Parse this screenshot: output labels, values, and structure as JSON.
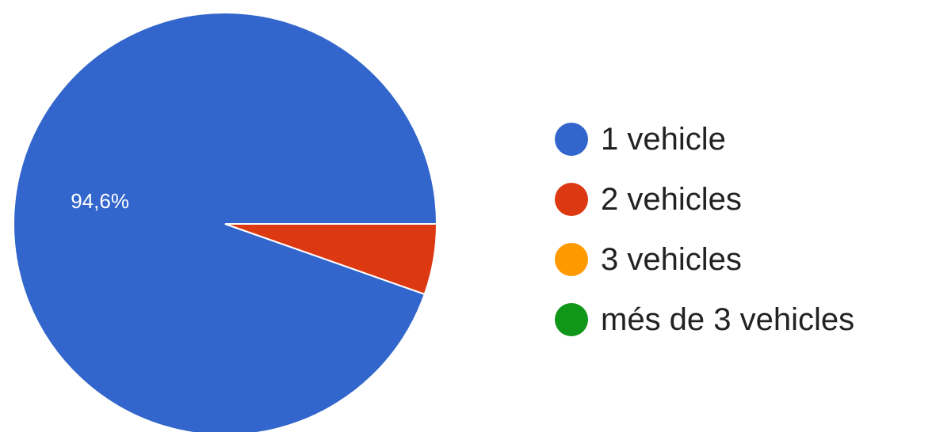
{
  "chart_data": {
    "type": "pie",
    "title": "",
    "slices": [
      {
        "label": "1 vehicle",
        "value": 94.6,
        "color": "#3366cc",
        "data_label": "94,6%"
      },
      {
        "label": "2 vehicles",
        "value": 5.4,
        "color": "#dc3912",
        "data_label": ""
      },
      {
        "label": "3 vehicles",
        "value": 0,
        "color": "#ff9900",
        "data_label": ""
      },
      {
        "label": "més de 3 vehicles",
        "value": 0,
        "color": "#109618",
        "data_label": ""
      }
    ],
    "legend_position": "right"
  }
}
